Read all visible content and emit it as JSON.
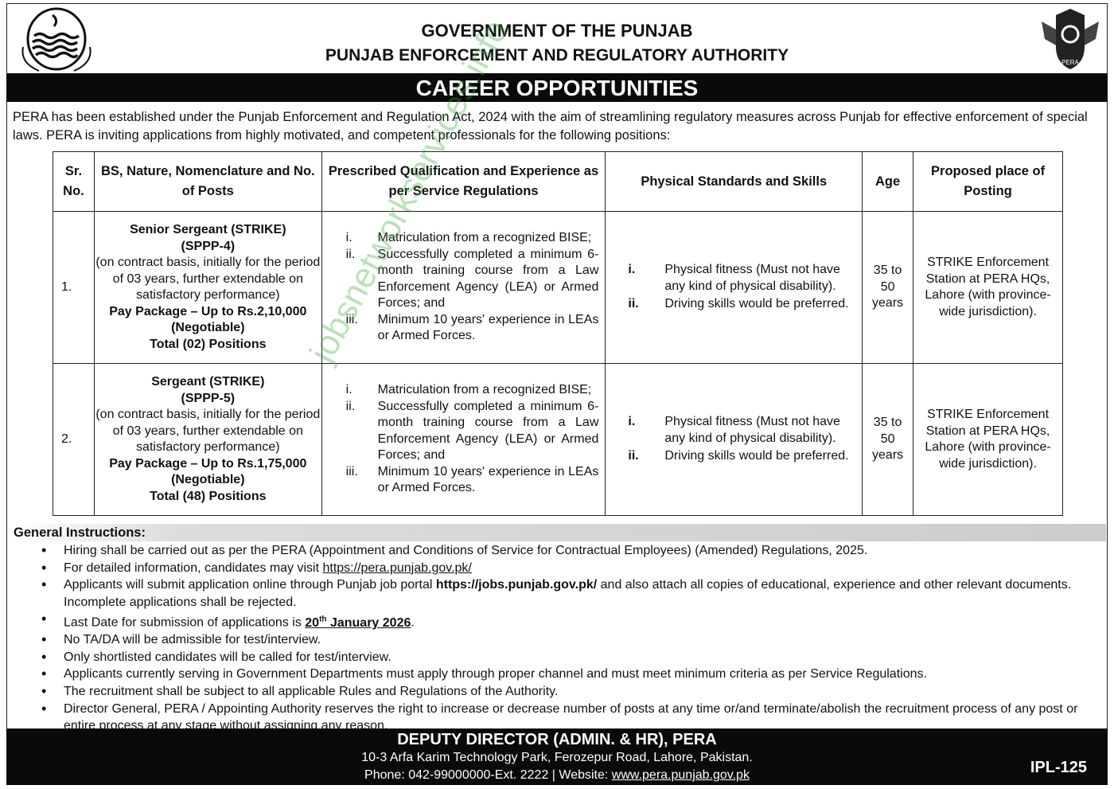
{
  "header": {
    "line1": "GOVERNMENT OF THE PUNJAB",
    "line2": "PUNJAB ENFORCEMENT AND REGULATORY AUTHORITY",
    "banner": "CAREER OPPORTUNITIES",
    "logo_right_text": "PERA"
  },
  "intro": "PERA has been established under the Punjab Enforcement and Regulation Act, 2024 with the aim of streamlining regulatory measures across Punjab for effective enforcement of special laws. PERA is inviting applications from highly motivated, and competent professionals for the following positions:",
  "table": {
    "headers": [
      "Sr. No.",
      "BS, Nature, Nomenclature and No. of Posts",
      "Prescribed Qualification and Experience as per Service Regulations",
      "Physical Standards and Skills",
      "Age",
      "Proposed place of Posting"
    ],
    "rows": [
      {
        "sr": "1.",
        "title": "Senior Sergeant (STRIKE)",
        "scale": "(SPPP-4)",
        "nature": "(on contract basis, initially for the period of 03 years, further extendable on satisfactory performance)",
        "pay": "Pay Package – Up to Rs.2,10,000 (Negotiable)",
        "total": "Total (02) Positions",
        "qual": [
          {
            "n": "i.",
            "t": "Matriculation from a recognized BISE;"
          },
          {
            "n": "ii.",
            "t": "Successfully completed a minimum 6-month training course from a Law Enforcement Agency (LEA) or Armed Forces; and"
          },
          {
            "n": "iii.",
            "t": "Minimum 10 years' experience in LEAs or Armed Forces."
          }
        ],
        "phys": [
          {
            "n": "i.",
            "t": "Physical fitness (Must not have any kind of physical disability)."
          },
          {
            "n": "ii.",
            "t": "Driving skills would be preferred."
          }
        ],
        "age": "35 to 50 years",
        "posting": "STRIKE Enforcement Station at PERA HQs, Lahore (with province-wide jurisdiction)."
      },
      {
        "sr": "2.",
        "title": "Sergeant (STRIKE)",
        "scale": "(SPPP-5)",
        "nature": "(on contract basis, initially for the period of 03 years, further extendable on satisfactory performance)",
        "pay": "Pay Package – Up to Rs.1,75,000 (Negotiable)",
        "total": "Total (48) Positions",
        "qual": [
          {
            "n": "i.",
            "t": "Matriculation from a recognized BISE;"
          },
          {
            "n": "ii.",
            "t": "Successfully completed a minimum 6-month training course from a Law Enforcement Agency (LEA) or Armed Forces; and"
          },
          {
            "n": "iii.",
            "t": "Minimum 10 years' experience in LEAs or Armed Forces."
          }
        ],
        "phys": [
          {
            "n": "i.",
            "t": "Physical fitness (Must not have any kind of physical disability)."
          },
          {
            "n": "ii.",
            "t": "Driving skills would be preferred."
          }
        ],
        "age": "35 to 50 years",
        "posting": "STRIKE Enforcement Station at PERA HQs, Lahore (with province-wide jurisdiction)."
      }
    ]
  },
  "instructions": {
    "title": "General Instructions:",
    "i1": "Hiring shall be carried out as per the PERA (Appointment and Conditions of Service for Contractual Employees) (Amended) Regulations, 2025.",
    "i2_pre": "For detailed information, candidates may visit ",
    "i2_link": "https://pera.punjab.gov.pk/",
    "i3_pre": "Applicants will submit application online through Punjab job portal ",
    "i3_link": "https://jobs.punjab.gov.pk/",
    "i3_post": " and also attach all copies of educational, experience and other relevant documents. Incomplete applications shall be rejected.",
    "i4_pre": "Last Date for submission of applications is ",
    "i4_day": "20",
    "i4_sup": "th",
    "i4_rest": " January 2026",
    "i4_end": ".",
    "i5": "No TA/DA will be admissible for test/interview.",
    "i6": "Only shortlisted candidates will be called for test/interview.",
    "i7": "Applicants currently serving in Government Departments must apply through proper channel and must meet minimum criteria as per Service Regulations.",
    "i8": "The recruitment shall be subject to all applicable Rules and Regulations of the Authority.",
    "i9": "Director General, PERA / Appointing Authority reserves the right to increase or decrease number of posts at any time or/and terminate/abolish the recruitment process of any post or entire process at any stage without assigning any reason."
  },
  "footer": {
    "title": "DEPUTY DIRECTOR (ADMIN. & HR), PERA",
    "address": "10-3 Arfa Karim Technology Park, Ferozepur Road, Lahore, Pakistan.",
    "phone": "Phone: 042-99000000-Ext. 2222 | Website: ",
    "website": "www.pera.punjab.gov.pk",
    "code": "IPL-125"
  },
  "watermark": "jobsnetworkservices.info"
}
